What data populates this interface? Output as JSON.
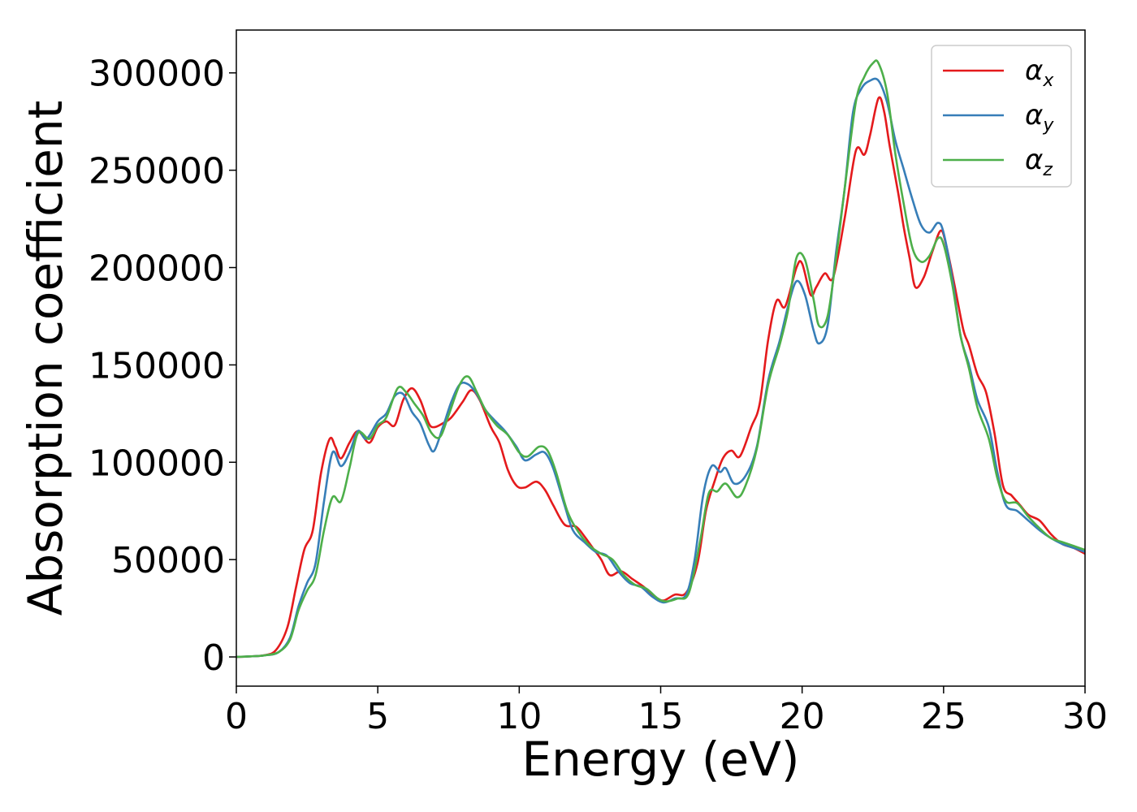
{
  "chart_data": {
    "type": "line",
    "title": "",
    "xlabel": "Energy (eV)",
    "ylabel": "Absorption coefficient",
    "xlim": [
      0,
      30
    ],
    "ylim": [
      -15000,
      322000
    ],
    "xticks": [
      "0",
      "5",
      "10",
      "15",
      "20",
      "25",
      "30"
    ],
    "yticks": [
      "0",
      "50000",
      "100000",
      "150000",
      "200000",
      "250000",
      "300000"
    ],
    "grid": false,
    "legend_position": "top-right",
    "series": [
      {
        "name": "α",
        "sub": "x",
        "color": "#e41a1c",
        "points": [
          [
            0,
            0
          ],
          [
            0.5,
            300
          ],
          [
            1.0,
            900
          ],
          [
            1.4,
            3500
          ],
          [
            1.8,
            15000
          ],
          [
            2.1,
            35000
          ],
          [
            2.4,
            55000
          ],
          [
            2.7,
            65000
          ],
          [
            3.0,
            95000
          ],
          [
            3.3,
            112000
          ],
          [
            3.5,
            108000
          ],
          [
            3.7,
            102000
          ],
          [
            4.0,
            110000
          ],
          [
            4.3,
            116000
          ],
          [
            4.7,
            110000
          ],
          [
            5.0,
            118000
          ],
          [
            5.3,
            121000
          ],
          [
            5.6,
            119000
          ],
          [
            5.9,
            132000
          ],
          [
            6.2,
            138000
          ],
          [
            6.5,
            132000
          ],
          [
            6.8,
            120000
          ],
          [
            7.0,
            118000
          ],
          [
            7.3,
            120000
          ],
          [
            7.6,
            123000
          ],
          [
            8.0,
            131000
          ],
          [
            8.3,
            137000
          ],
          [
            8.6,
            132000
          ],
          [
            9.0,
            118000
          ],
          [
            9.3,
            110000
          ],
          [
            9.6,
            96000
          ],
          [
            9.9,
            88000
          ],
          [
            10.2,
            87000
          ],
          [
            10.6,
            90000
          ],
          [
            10.9,
            86000
          ],
          [
            11.2,
            78000
          ],
          [
            11.6,
            68000
          ],
          [
            12.0,
            67000
          ],
          [
            12.3,
            62000
          ],
          [
            12.6,
            56000
          ],
          [
            12.9,
            50000
          ],
          [
            13.2,
            42000
          ],
          [
            13.6,
            44000
          ],
          [
            14.0,
            40000
          ],
          [
            14.4,
            36000
          ],
          [
            14.8,
            31000
          ],
          [
            15.1,
            29000
          ],
          [
            15.5,
            32000
          ],
          [
            15.9,
            33000
          ],
          [
            16.3,
            48000
          ],
          [
            16.6,
            75000
          ],
          [
            16.9,
            90000
          ],
          [
            17.2,
            102000
          ],
          [
            17.5,
            106000
          ],
          [
            17.8,
            103000
          ],
          [
            18.2,
            118000
          ],
          [
            18.5,
            130000
          ],
          [
            18.8,
            163000
          ],
          [
            19.1,
            183000
          ],
          [
            19.4,
            180000
          ],
          [
            19.8,
            200000
          ],
          [
            20.0,
            202000
          ],
          [
            20.3,
            186000
          ],
          [
            20.5,
            190000
          ],
          [
            20.8,
            197000
          ],
          [
            21.1,
            195000
          ],
          [
            21.5,
            225000
          ],
          [
            21.9,
            260000
          ],
          [
            22.2,
            258000
          ],
          [
            22.4,
            268000
          ],
          [
            22.7,
            287000
          ],
          [
            22.9,
            280000
          ],
          [
            23.1,
            262000
          ],
          [
            23.4,
            238000
          ],
          [
            23.6,
            220000
          ],
          [
            23.8,
            205000
          ],
          [
            24.0,
            190000
          ],
          [
            24.3,
            195000
          ],
          [
            24.6,
            208000
          ],
          [
            24.9,
            219000
          ],
          [
            25.1,
            211000
          ],
          [
            25.4,
            190000
          ],
          [
            25.7,
            168000
          ],
          [
            25.9,
            160000
          ],
          [
            26.2,
            145000
          ],
          [
            26.5,
            136000
          ],
          [
            26.8,
            115000
          ],
          [
            27.1,
            88000
          ],
          [
            27.4,
            83000
          ],
          [
            27.7,
            78000
          ],
          [
            28.0,
            73000
          ],
          [
            28.4,
            70000
          ],
          [
            28.8,
            63000
          ],
          [
            29.2,
            58000
          ],
          [
            29.6,
            56000
          ],
          [
            30.0,
            53000
          ]
        ]
      },
      {
        "name": "α",
        "sub": "y",
        "color": "#377eb8",
        "points": [
          [
            0,
            0
          ],
          [
            0.5,
            300
          ],
          [
            1.0,
            800
          ],
          [
            1.5,
            2500
          ],
          [
            1.9,
            10000
          ],
          [
            2.2,
            26000
          ],
          [
            2.5,
            38000
          ],
          [
            2.8,
            48000
          ],
          [
            3.1,
            80000
          ],
          [
            3.4,
            105000
          ],
          [
            3.7,
            98000
          ],
          [
            4.0,
            105000
          ],
          [
            4.3,
            116000
          ],
          [
            4.6,
            112000
          ],
          [
            5.0,
            121000
          ],
          [
            5.3,
            125000
          ],
          [
            5.6,
            134000
          ],
          [
            5.9,
            135000
          ],
          [
            6.2,
            126000
          ],
          [
            6.5,
            120000
          ],
          [
            6.8,
            109000
          ],
          [
            7.0,
            106000
          ],
          [
            7.3,
            118000
          ],
          [
            7.6,
            131000
          ],
          [
            7.9,
            140000
          ],
          [
            8.2,
            140000
          ],
          [
            8.5,
            135000
          ],
          [
            8.8,
            127000
          ],
          [
            9.1,
            122000
          ],
          [
            9.5,
            116000
          ],
          [
            9.9,
            108000
          ],
          [
            10.2,
            101000
          ],
          [
            10.6,
            104000
          ],
          [
            10.9,
            105000
          ],
          [
            11.2,
            97000
          ],
          [
            11.6,
            78000
          ],
          [
            11.9,
            65000
          ],
          [
            12.3,
            59000
          ],
          [
            12.7,
            54000
          ],
          [
            13.1,
            52000
          ],
          [
            13.5,
            44000
          ],
          [
            13.9,
            38000
          ],
          [
            14.3,
            36000
          ],
          [
            14.7,
            31000
          ],
          [
            15.1,
            28000
          ],
          [
            15.5,
            30000
          ],
          [
            15.9,
            32000
          ],
          [
            16.2,
            50000
          ],
          [
            16.5,
            83000
          ],
          [
            16.8,
            98000
          ],
          [
            17.1,
            95000
          ],
          [
            17.3,
            97000
          ],
          [
            17.6,
            89000
          ],
          [
            18.0,
            93000
          ],
          [
            18.4,
            108000
          ],
          [
            18.8,
            142000
          ],
          [
            19.2,
            162000
          ],
          [
            19.5,
            180000
          ],
          [
            19.8,
            193000
          ],
          [
            20.1,
            186000
          ],
          [
            20.4,
            168000
          ],
          [
            20.6,
            161000
          ],
          [
            20.9,
            170000
          ],
          [
            21.2,
            208000
          ],
          [
            21.5,
            240000
          ],
          [
            21.8,
            280000
          ],
          [
            22.1,
            292000
          ],
          [
            22.4,
            296000
          ],
          [
            22.7,
            296000
          ],
          [
            23.0,
            285000
          ],
          [
            23.3,
            265000
          ],
          [
            23.6,
            250000
          ],
          [
            23.9,
            235000
          ],
          [
            24.2,
            222000
          ],
          [
            24.5,
            218000
          ],
          [
            24.8,
            223000
          ],
          [
            25.0,
            218000
          ],
          [
            25.3,
            195000
          ],
          [
            25.6,
            165000
          ],
          [
            25.9,
            150000
          ],
          [
            26.2,
            132000
          ],
          [
            26.6,
            118000
          ],
          [
            26.9,
            95000
          ],
          [
            27.2,
            78000
          ],
          [
            27.6,
            75000
          ],
          [
            28.0,
            70000
          ],
          [
            28.4,
            65000
          ],
          [
            28.8,
            61000
          ],
          [
            29.2,
            58000
          ],
          [
            29.6,
            56000
          ],
          [
            30.0,
            54000
          ]
        ]
      },
      {
        "name": "α",
        "sub": "z",
        "color": "#4daf4a",
        "points": [
          [
            0,
            0
          ],
          [
            0.5,
            300
          ],
          [
            1.0,
            800
          ],
          [
            1.5,
            2500
          ],
          [
            1.9,
            9000
          ],
          [
            2.2,
            24000
          ],
          [
            2.5,
            34000
          ],
          [
            2.8,
            42000
          ],
          [
            3.1,
            65000
          ],
          [
            3.4,
            82000
          ],
          [
            3.7,
            80000
          ],
          [
            4.0,
            97000
          ],
          [
            4.3,
            115000
          ],
          [
            4.7,
            112000
          ],
          [
            5.0,
            119000
          ],
          [
            5.3,
            123000
          ],
          [
            5.7,
            138000
          ],
          [
            6.0,
            136000
          ],
          [
            6.3,
            130000
          ],
          [
            6.6,
            124000
          ],
          [
            6.9,
            115000
          ],
          [
            7.2,
            113000
          ],
          [
            7.5,
            124000
          ],
          [
            7.9,
            140000
          ],
          [
            8.2,
            144000
          ],
          [
            8.5,
            136000
          ],
          [
            8.8,
            127000
          ],
          [
            9.2,
            119000
          ],
          [
            9.6,
            114000
          ],
          [
            10.0,
            105000
          ],
          [
            10.3,
            103000
          ],
          [
            10.7,
            108000
          ],
          [
            11.0,
            106000
          ],
          [
            11.3,
            95000
          ],
          [
            11.7,
            75000
          ],
          [
            12.1,
            64000
          ],
          [
            12.5,
            57000
          ],
          [
            12.9,
            53000
          ],
          [
            13.3,
            50000
          ],
          [
            13.7,
            42000
          ],
          [
            14.1,
            37000
          ],
          [
            14.5,
            35000
          ],
          [
            14.9,
            30000
          ],
          [
            15.2,
            28500
          ],
          [
            15.6,
            30000
          ],
          [
            16.0,
            33000
          ],
          [
            16.4,
            60000
          ],
          [
            16.7,
            84000
          ],
          [
            17.0,
            85000
          ],
          [
            17.3,
            89000
          ],
          [
            17.7,
            82000
          ],
          [
            18.0,
            88000
          ],
          [
            18.4,
            107000
          ],
          [
            18.8,
            140000
          ],
          [
            19.2,
            160000
          ],
          [
            19.5,
            178000
          ],
          [
            19.8,
            205000
          ],
          [
            20.1,
            204000
          ],
          [
            20.4,
            184000
          ],
          [
            20.6,
            170000
          ],
          [
            20.9,
            175000
          ],
          [
            21.2,
            205000
          ],
          [
            21.5,
            240000
          ],
          [
            21.9,
            285000
          ],
          [
            22.2,
            298000
          ],
          [
            22.5,
            305000
          ],
          [
            22.7,
            305000
          ],
          [
            23.0,
            290000
          ],
          [
            23.3,
            258000
          ],
          [
            23.6,
            232000
          ],
          [
            23.9,
            210000
          ],
          [
            24.2,
            203000
          ],
          [
            24.5,
            206000
          ],
          [
            24.8,
            215000
          ],
          [
            25.0,
            212000
          ],
          [
            25.3,
            192000
          ],
          [
            25.6,
            165000
          ],
          [
            25.9,
            148000
          ],
          [
            26.2,
            128000
          ],
          [
            26.6,
            112000
          ],
          [
            26.9,
            92000
          ],
          [
            27.2,
            80000
          ],
          [
            27.6,
            79000
          ],
          [
            28.0,
            72000
          ],
          [
            28.4,
            66000
          ],
          [
            28.8,
            61000
          ],
          [
            29.2,
            59000
          ],
          [
            29.6,
            57000
          ],
          [
            30.0,
            55000
          ]
        ]
      }
    ]
  }
}
